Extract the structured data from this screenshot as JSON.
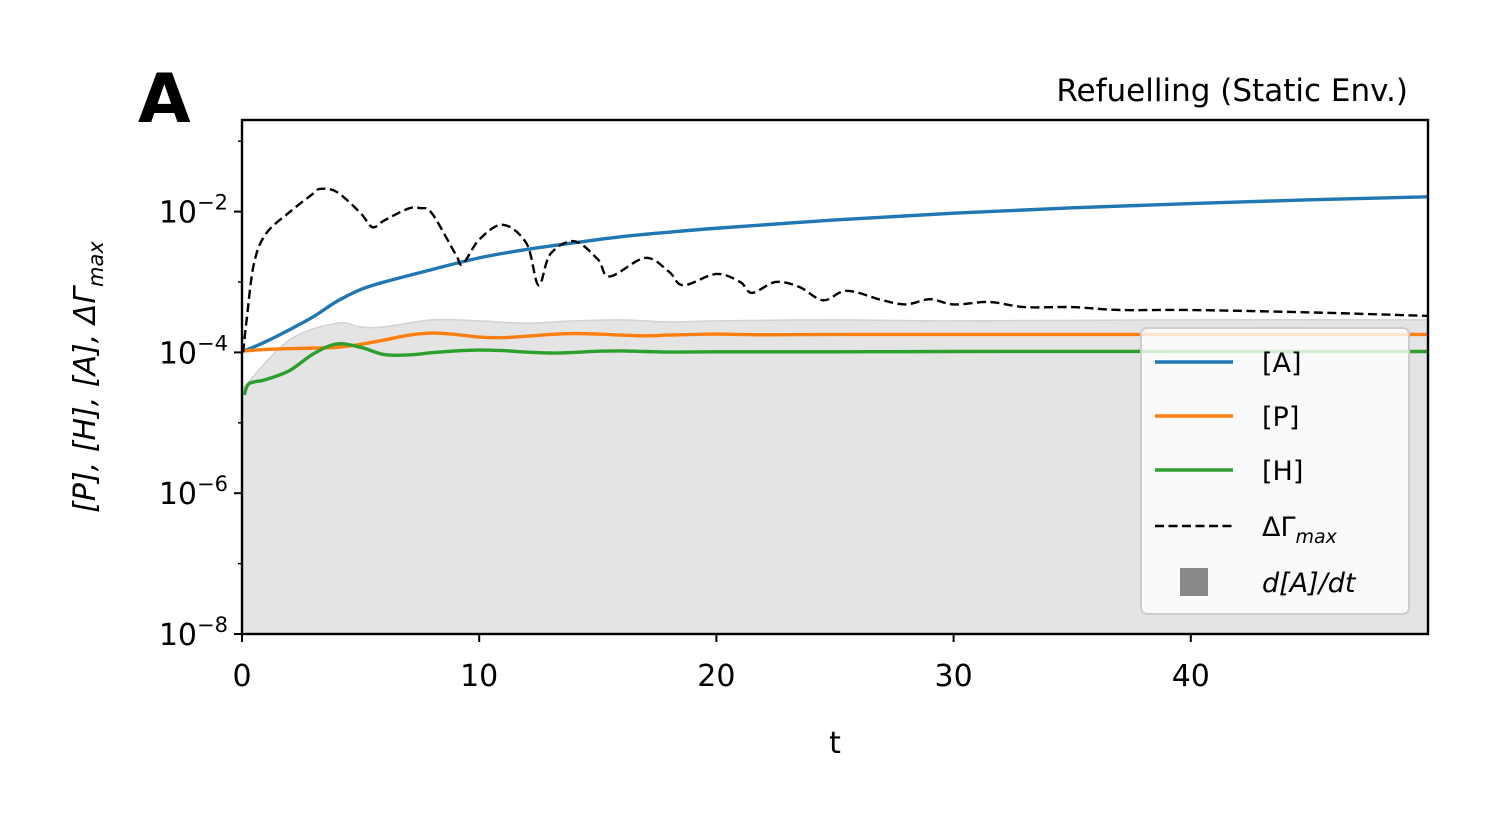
{
  "chart_data": {
    "type": "line",
    "panel_label": "A",
    "title": "Refuelling (Static Env.)",
    "xlabel": "t",
    "ylabel": "[P], [H], [A], ΔΓ_max",
    "xscale": "linear",
    "yscale": "log",
    "xlim": [
      0,
      50
    ],
    "ylim": [
      1e-08,
      0.2
    ],
    "x_ticks": [
      0,
      10,
      20,
      30,
      40
    ],
    "y_ticks": [
      {
        "base": "10",
        "exp": "−8",
        "value": 1e-08
      },
      {
        "base": "10",
        "exp": "−6",
        "value": 1e-06
      },
      {
        "base": "10",
        "exp": "−4",
        "value": 0.0001
      },
      {
        "base": "10",
        "exp": "−2",
        "value": 0.01
      }
    ],
    "grid": false,
    "legend_position": "lower-right",
    "series": [
      {
        "name": "[A]",
        "style": "solid",
        "color": "#1f77b4",
        "points": [
          [
            0.1,
            0.000105
          ],
          [
            1,
            0.000142
          ],
          [
            2,
            0.00021
          ],
          [
            3,
            0.00032
          ],
          [
            4,
            0.00053
          ],
          [
            5,
            0.00078
          ],
          [
            6,
            0.001
          ],
          [
            8,
            0.0015
          ],
          [
            10,
            0.0022
          ],
          [
            12,
            0.0029
          ],
          [
            14,
            0.0036
          ],
          [
            16,
            0.0044
          ],
          [
            18,
            0.0051
          ],
          [
            20,
            0.0058
          ],
          [
            25,
            0.0076
          ],
          [
            30,
            0.0095
          ],
          [
            35,
            0.0113
          ],
          [
            40,
            0.013
          ],
          [
            45,
            0.0147
          ],
          [
            50,
            0.0162
          ]
        ]
      },
      {
        "name": "[P]",
        "style": "solid",
        "color": "#ff7f0e",
        "points": [
          [
            0.1,
            0.000105
          ],
          [
            1,
            0.00011
          ],
          [
            2,
            0.000113
          ],
          [
            3,
            0.000115
          ],
          [
            4,
            0.000118
          ],
          [
            5,
            0.00013
          ],
          [
            6,
            0.00015
          ],
          [
            7,
            0.000175
          ],
          [
            8,
            0.000188
          ],
          [
            9,
            0.00018
          ],
          [
            10,
            0.000165
          ],
          [
            11,
            0.000162
          ],
          [
            12,
            0.00017
          ],
          [
            13,
            0.00018
          ],
          [
            14,
            0.000185
          ],
          [
            15,
            0.000182
          ],
          [
            16,
            0.000176
          ],
          [
            17,
            0.000172
          ],
          [
            18,
            0.000176
          ],
          [
            20,
            0.000182
          ],
          [
            22,
            0.000178
          ],
          [
            25,
            0.00018
          ],
          [
            30,
            0.00018
          ],
          [
            40,
            0.00018
          ],
          [
            50,
            0.00018
          ]
        ]
      },
      {
        "name": "[H]",
        "style": "solid",
        "color": "#2ca02c",
        "points": [
          [
            0.1,
            2.5e-05
          ],
          [
            0.3,
            3.6e-05
          ],
          [
            1,
            4.1e-05
          ],
          [
            2,
            5.5e-05
          ],
          [
            3,
            9.5e-05
          ],
          [
            4,
            0.000132
          ],
          [
            5,
            0.000118
          ],
          [
            6,
            9.3e-05
          ],
          [
            7,
            9.2e-05
          ],
          [
            8,
            9.9e-05
          ],
          [
            9,
            0.000105
          ],
          [
            10,
            0.000108
          ],
          [
            11,
            0.000106
          ],
          [
            12,
            0.000101
          ],
          [
            13,
            9.8e-05
          ],
          [
            14,
            0.0001
          ],
          [
            15,
            0.000104
          ],
          [
            16,
            0.000105
          ],
          [
            17,
            0.000103
          ],
          [
            18,
            0.000101
          ],
          [
            20,
            0.000102
          ],
          [
            25,
            0.000102
          ],
          [
            30,
            0.000103
          ],
          [
            40,
            0.000103
          ],
          [
            50,
            0.000103
          ]
        ]
      },
      {
        "name": "ΔΓ_max",
        "style": "dashed",
        "color": "#000000",
        "points": [
          [
            0.05,
            0.0001
          ],
          [
            0.2,
            0.0003
          ],
          [
            0.5,
            0.0018
          ],
          [
            1,
            0.0048
          ],
          [
            2,
            0.0098
          ],
          [
            3,
            0.018
          ],
          [
            3.3,
            0.021
          ],
          [
            4,
            0.019
          ],
          [
            5,
            0.0095
          ],
          [
            5.5,
            0.006
          ],
          [
            6,
            0.0075
          ],
          [
            7,
            0.011
          ],
          [
            7.5,
            0.0112
          ],
          [
            8,
            0.0095
          ],
          [
            9,
            0.0025
          ],
          [
            9.3,
            0.0018
          ],
          [
            10,
            0.004
          ],
          [
            11,
            0.0065
          ],
          [
            12,
            0.0035
          ],
          [
            12.5,
            0.0009
          ],
          [
            13,
            0.0025
          ],
          [
            14,
            0.0038
          ],
          [
            15,
            0.0021
          ],
          [
            15.5,
            0.0012
          ],
          [
            17,
            0.0022
          ],
          [
            18,
            0.0014
          ],
          [
            18.6,
            0.0009
          ],
          [
            20,
            0.0013
          ],
          [
            21,
            0.001
          ],
          [
            21.5,
            0.0007
          ],
          [
            22.5,
            0.001
          ],
          [
            23.5,
            0.00085
          ],
          [
            24.5,
            0.00055
          ],
          [
            25.5,
            0.00075
          ],
          [
            27,
            0.00055
          ],
          [
            28,
            0.00048
          ],
          [
            29,
            0.00057
          ],
          [
            30,
            0.00048
          ],
          [
            31.5,
            0.00052
          ],
          [
            33,
            0.00044
          ],
          [
            35,
            0.00044
          ],
          [
            37,
            0.0004
          ],
          [
            40,
            0.0004
          ],
          [
            45,
            0.00037
          ],
          [
            50,
            0.00033
          ]
        ]
      }
    ],
    "shaded_area": {
      "name": "d[A]/dt",
      "color": "#888888",
      "fill": "#e4e4e4",
      "points": [
        [
          0,
          3e-05
        ],
        [
          2,
          0.00015
        ],
        [
          4,
          0.00026
        ],
        [
          5,
          0.00023
        ],
        [
          6,
          0.00023
        ],
        [
          8,
          0.00029
        ],
        [
          10,
          0.00028
        ],
        [
          12,
          0.00026
        ],
        [
          14,
          0.00028
        ],
        [
          16,
          0.00029
        ],
        [
          18,
          0.00027
        ],
        [
          20,
          0.00028
        ],
        [
          25,
          0.00029
        ],
        [
          30,
          0.00028
        ],
        [
          40,
          0.00029
        ],
        [
          50,
          0.00029
        ]
      ]
    }
  }
}
